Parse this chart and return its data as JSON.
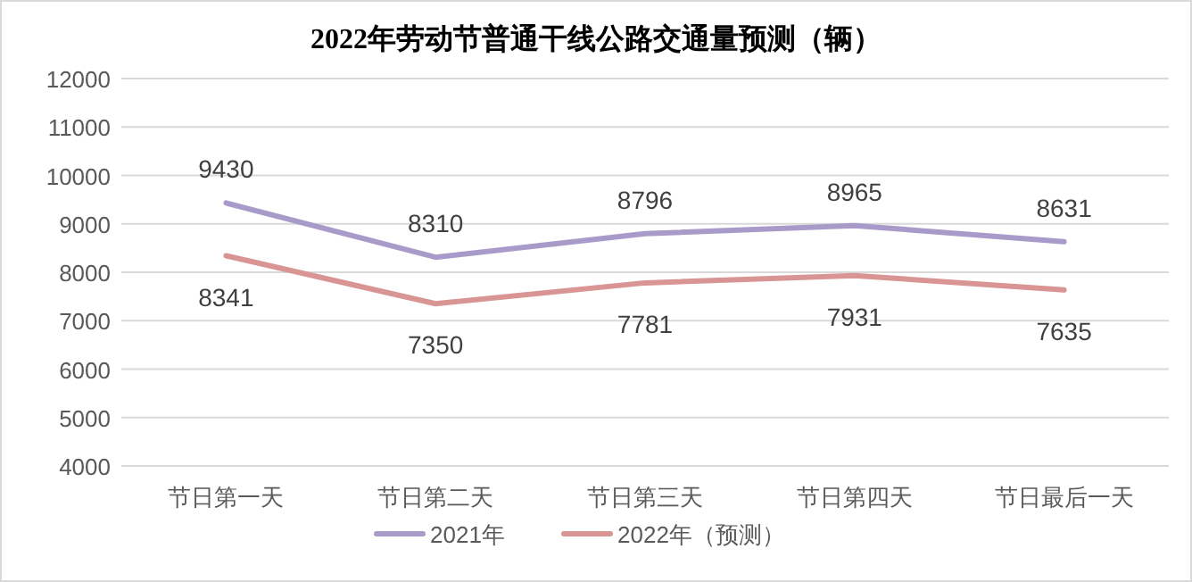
{
  "chart_data": {
    "type": "line",
    "title": "2022年劳动节普通干线公路交通量预测（辆）",
    "categories": [
      "节日第一天",
      "节日第二天",
      "节日第三天",
      "节日第四天",
      "节日最后一天"
    ],
    "series": [
      {
        "name": "2021年",
        "color": "#a99bc9",
        "values": [
          9430,
          8310,
          8796,
          8965,
          8631
        ]
      },
      {
        "name": "2022年（预测）",
        "color": "#d99594",
        "values": [
          8341,
          7350,
          7781,
          7931,
          7635
        ]
      }
    ],
    "ylim": [
      4000,
      12000
    ],
    "yticks": [
      4000,
      5000,
      6000,
      7000,
      8000,
      9000,
      10000,
      11000,
      12000
    ],
    "grid": "y",
    "legend": "bottom",
    "data_labels": true,
    "marker": "none",
    "line_style": "solid"
  }
}
